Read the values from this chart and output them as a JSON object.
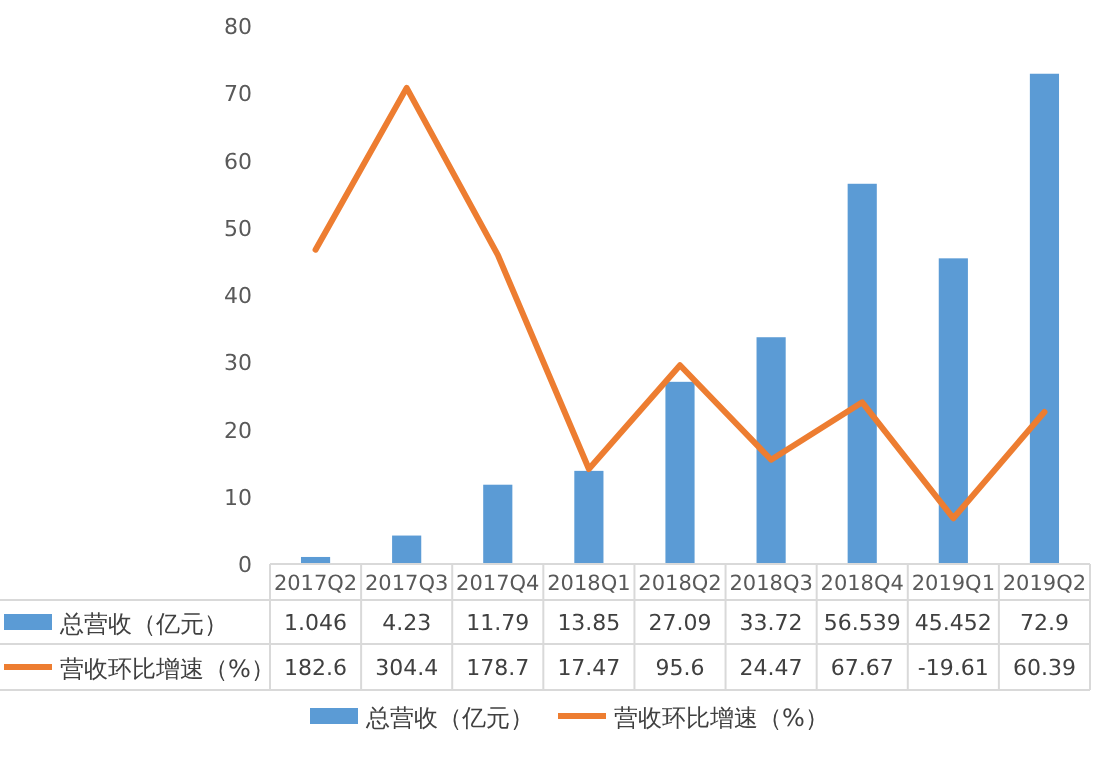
{
  "chart_data": {
    "type": "bar",
    "categories": [
      "2017Q2",
      "2017Q3",
      "2017Q4",
      "2018Q1",
      "2018Q2",
      "2018Q3",
      "2018Q4",
      "2019Q1",
      "2019Q2"
    ],
    "series": [
      {
        "name": "总营收（亿元）",
        "color": "#5b9bd5",
        "values": [
          1.046,
          4.23,
          11.79,
          13.85,
          27.09,
          33.72,
          56.539,
          45.452,
          72.9
        ]
      },
      {
        "name": "营收环比增速（%）",
        "type": "line",
        "axis": "y2",
        "color": "#ed7d31",
        "values": [
          182.6,
          304.4,
          178.7,
          17.47,
          95.6,
          24.47,
          67.67,
          -19.61,
          60.39
        ]
      }
    ],
    "ylim": [
      0,
      80
    ],
    "yticks": [
      0,
      10,
      20,
      30,
      40,
      50,
      60,
      70,
      80
    ],
    "data_labels": true,
    "legend": "bottom",
    "grid": false,
    "marker": "none",
    "line_style": "solid"
  }
}
